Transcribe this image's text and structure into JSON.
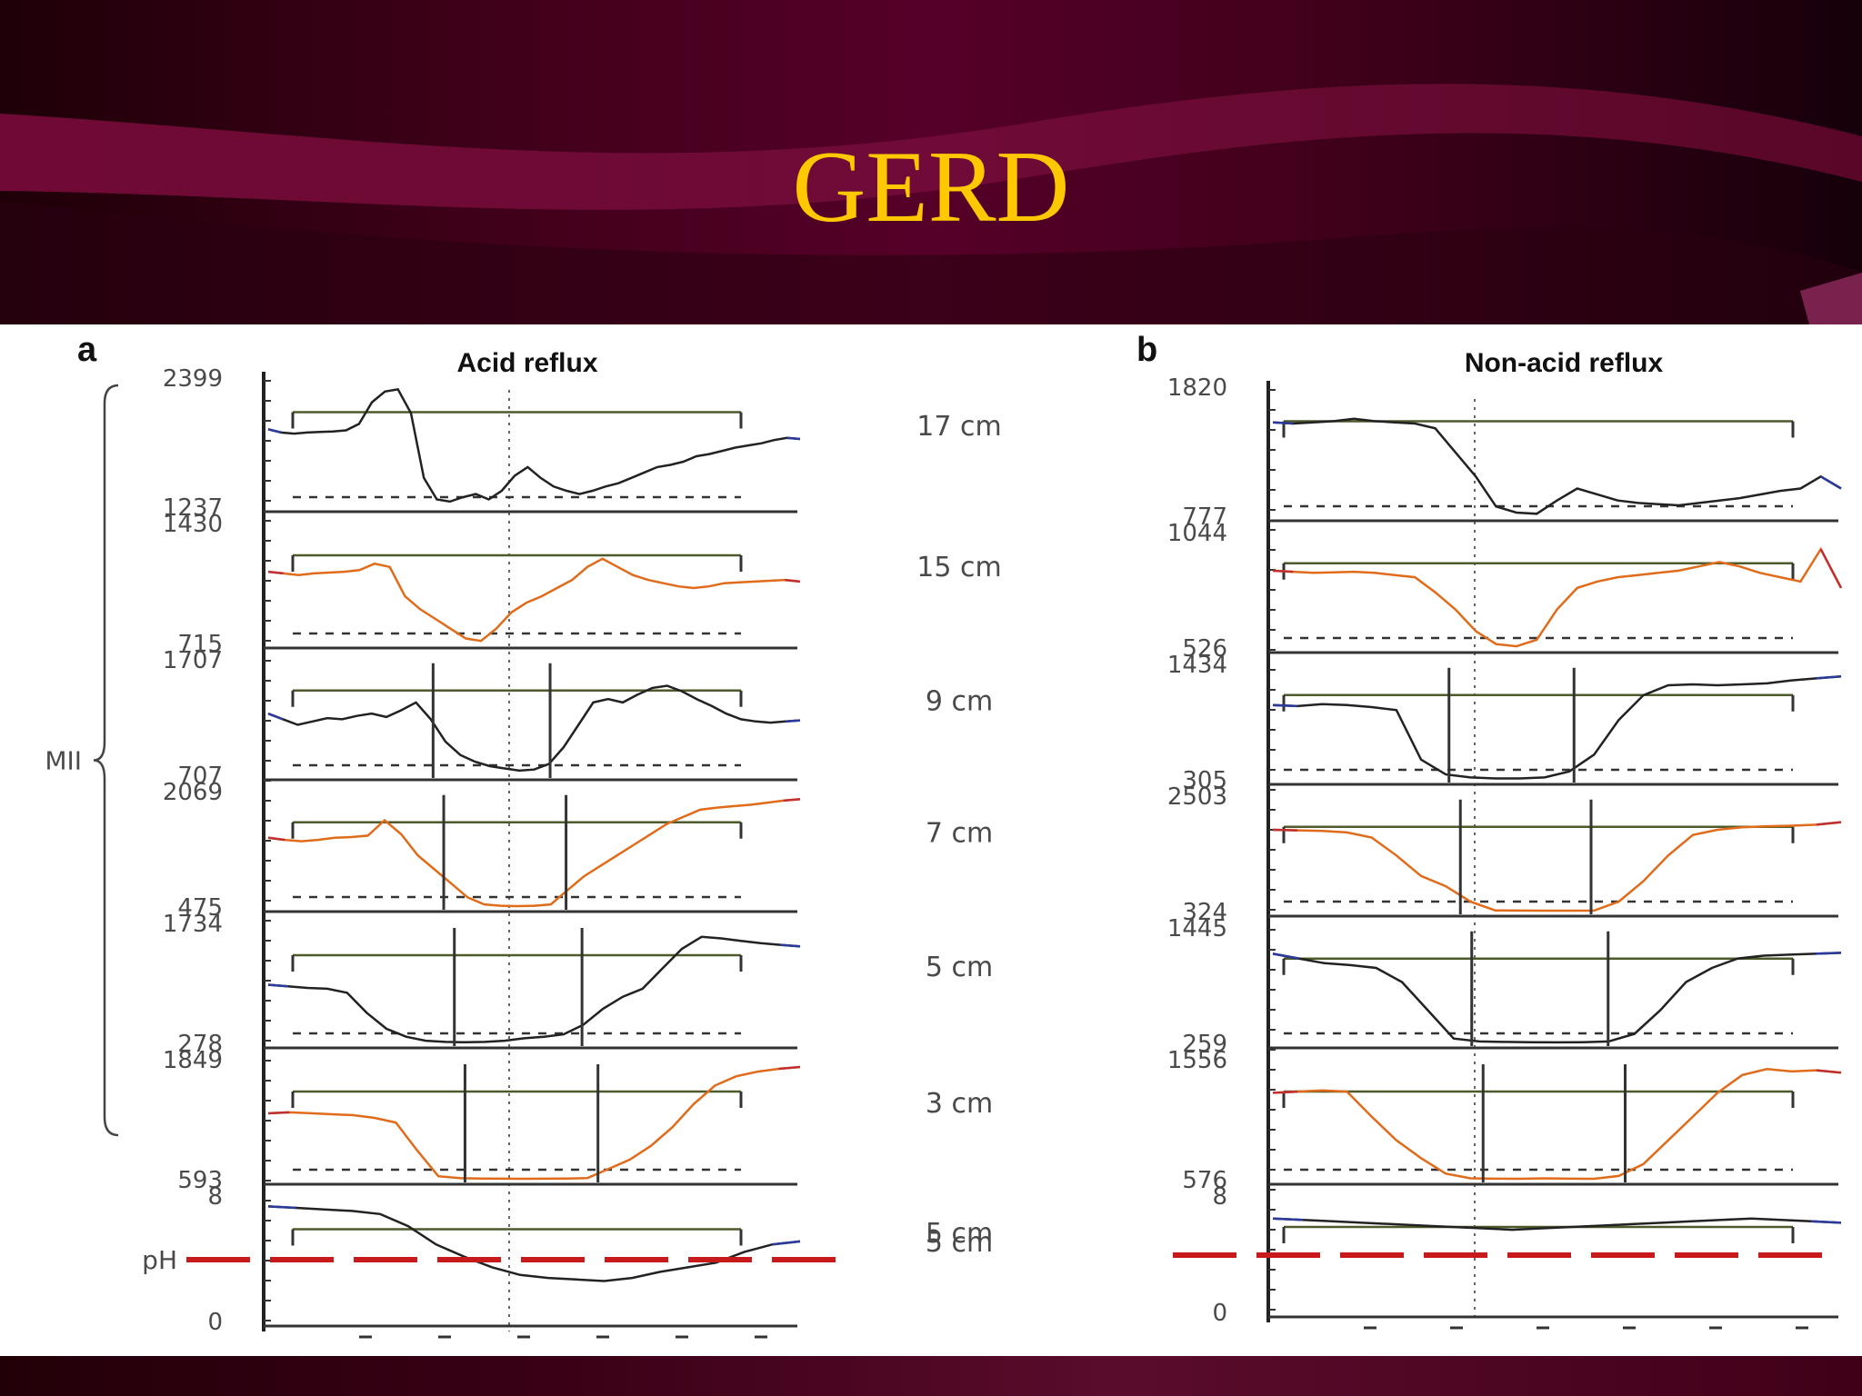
{
  "slide": {
    "title": "GERD",
    "colors": {
      "title": "#ffc800",
      "background": "#3a0016",
      "accent": "#7a0a3a"
    }
  },
  "chart_data": [
    {
      "type": "line",
      "panel_letter": "a",
      "title": "Acid reflux",
      "group_label": "MII",
      "ph_label": "pH",
      "channels": [
        {
          "distance": "17 cm",
          "y_top": "2399",
          "y_bottom": "1237",
          "ymin": 1237,
          "ymax": 2399,
          "color_line": "#222222",
          "color_edge": "#2a3a9a",
          "values": [
            1950,
            1920,
            1910,
            1920,
            1925,
            1930,
            1940,
            2000,
            2200,
            2300,
            2320,
            2100,
            1500,
            1300,
            1280,
            1320,
            1350,
            1300,
            1380,
            1520,
            1600,
            1500,
            1420,
            1380,
            1350,
            1380,
            1420,
            1450,
            1500,
            1550,
            1600,
            1620,
            1650,
            1700,
            1720,
            1750,
            1780,
            1800,
            1820,
            1850,
            1870,
            1860
          ]
        },
        {
          "distance": "15 cm",
          "y_top": "1430",
          "y_bottom": "715",
          "ymin": 715,
          "ymax": 1430,
          "color_line": "#e06b1a",
          "color_edge": "#c03030",
          "values": [
            1150,
            1140,
            1130,
            1140,
            1145,
            1150,
            1160,
            1200,
            1180,
            1000,
            920,
            860,
            800,
            740,
            725,
            800,
            900,
            960,
            1000,
            1050,
            1100,
            1180,
            1230,
            1180,
            1130,
            1100,
            1080,
            1060,
            1050,
            1060,
            1080,
            1085,
            1090,
            1095,
            1100,
            1090
          ]
        },
        {
          "distance": "9 cm",
          "y_top": "1707",
          "y_bottom": "707",
          "ymin": 707,
          "ymax": 1707,
          "color_line": "#222222",
          "color_edge": "#2a3a9a",
          "values": [
            1250,
            1200,
            1150,
            1180,
            1210,
            1200,
            1230,
            1250,
            1220,
            1280,
            1350,
            1200,
            1000,
            880,
            820,
            780,
            760,
            740,
            750,
            800,
            950,
            1150,
            1350,
            1380,
            1350,
            1420,
            1480,
            1500,
            1450,
            1380,
            1320,
            1250,
            1200,
            1180,
            1170,
            1180,
            1190
          ]
        },
        {
          "distance": "7 cm",
          "y_top": "2069",
          "y_bottom": "475",
          "ymin": 475,
          "ymax": 2069,
          "color_line": "#e06b1a",
          "color_edge": "#c03030",
          "values": [
            1450,
            1420,
            1400,
            1420,
            1450,
            1460,
            1480,
            1700,
            1500,
            1200,
            1000,
            800,
            600,
            500,
            480,
            475,
            480,
            500,
            700,
            900,
            1050,
            1200,
            1350,
            1500,
            1650,
            1750,
            1850,
            1880,
            1900,
            1920,
            1950,
            1980,
            2000
          ]
        },
        {
          "distance": "5 cm",
          "y_top": "1734",
          "y_bottom": "278",
          "ymin": 278,
          "ymax": 1734,
          "color_line": "#222222",
          "color_edge": "#2a3a9a",
          "values": [
            1000,
            980,
            960,
            950,
            900,
            650,
            450,
            350,
            300,
            285,
            280,
            285,
            300,
            330,
            350,
            380,
            500,
            700,
            850,
            950,
            1200,
            1450,
            1600,
            1580,
            1550,
            1520,
            1500,
            1480
          ]
        },
        {
          "distance": "3 cm",
          "y_top": "1849",
          "y_bottom": "593",
          "ymin": 593,
          "ymax": 1849,
          "color_line": "#e06b1a",
          "color_edge": "#c03030",
          "values": [
            1300,
            1310,
            1300,
            1290,
            1280,
            1250,
            1200,
            900,
            620,
            600,
            595,
            594,
            593,
            594,
            595,
            600,
            700,
            800,
            950,
            1150,
            1400,
            1600,
            1700,
            1750,
            1780,
            1800
          ]
        }
      ],
      "ph": {
        "distance": "5 cm",
        "y_top": "8",
        "y_bottom": "0",
        "ymin": 0,
        "ymax": 8,
        "threshold": 4,
        "values": [
          7.5,
          7.4,
          7.3,
          7.2,
          7.0,
          6.2,
          5.0,
          4.2,
          3.5,
          3.0,
          2.8,
          2.7,
          2.6,
          2.8,
          3.2,
          3.5,
          3.8,
          4.5,
          5.0,
          5.2
        ]
      }
    },
    {
      "type": "line",
      "panel_letter": "b",
      "title": "Non-acid reflux",
      "channels": [
        {
          "distance": "",
          "y_top": "1820",
          "y_bottom": "777",
          "ymin": 777,
          "ymax": 1820,
          "color_line": "#222222",
          "color_edge": "#2a3a9a",
          "values": [
            1550,
            1540,
            1550,
            1560,
            1580,
            1560,
            1550,
            1540,
            1500,
            1300,
            1100,
            850,
            800,
            790,
            900,
            1000,
            950,
            900,
            880,
            870,
            860,
            880,
            900,
            920,
            950,
            980,
            1000,
            1100,
            1000
          ]
        },
        {
          "distance": "",
          "y_top": "1044",
          "y_bottom": "526",
          "ymin": 526,
          "ymax": 1044,
          "color_line": "#e06b1a",
          "color_edge": "#c03030",
          "values": [
            880,
            875,
            870,
            872,
            875,
            870,
            860,
            850,
            780,
            700,
            600,
            540,
            530,
            560,
            700,
            800,
            830,
            850,
            860,
            870,
            880,
            900,
            920,
            900,
            870,
            850,
            830,
            980,
            800
          ]
        },
        {
          "distance": "",
          "y_top": "1434",
          "y_bottom": "305",
          "ymin": 305,
          "ymax": 1434,
          "color_line": "#222222",
          "color_edge": "#2a3a9a",
          "values": [
            1050,
            1040,
            1060,
            1050,
            1030,
            1000,
            500,
            350,
            320,
            310,
            310,
            320,
            380,
            550,
            900,
            1150,
            1250,
            1260,
            1250,
            1260,
            1270,
            1300,
            1320,
            1340
          ]
        },
        {
          "distance": "",
          "y_top": "2503",
          "y_bottom": "324",
          "ymin": 324,
          "ymax": 2503,
          "color_line": "#e06b1a",
          "color_edge": "#c03030",
          "values": [
            1900,
            1890,
            1880,
            1850,
            1750,
            1400,
            1000,
            800,
            500,
            330,
            325,
            324,
            324,
            325,
            500,
            900,
            1400,
            1800,
            1900,
            1950,
            1970,
            1980,
            2000,
            2050
          ]
        },
        {
          "distance": "",
          "y_top": "1445",
          "y_bottom": "259",
          "ymin": 259,
          "ymax": 1445,
          "color_line": "#222222",
          "color_edge": "#2a3a9a",
          "values": [
            1200,
            1150,
            1100,
            1080,
            1050,
            900,
            600,
            300,
            270,
            265,
            262,
            260,
            262,
            270,
            350,
            600,
            900,
            1050,
            1150,
            1180,
            1190,
            1200,
            1210
          ]
        },
        {
          "distance": "",
          "y_top": "1556",
          "y_bottom": "576",
          "ymin": 576,
          "ymax": 1556,
          "color_line": "#e06b1a",
          "color_edge": "#c03030",
          "values": [
            1300,
            1310,
            1320,
            1310,
            1100,
            900,
            750,
            620,
            580,
            577,
            576,
            580,
            577,
            576,
            600,
            700,
            900,
            1100,
            1300,
            1450,
            1500,
            1480,
            1490,
            1470
          ]
        }
      ],
      "ph": {
        "distance": "",
        "y_top": "8",
        "y_bottom": "0",
        "ymin": 0,
        "ymax": 8,
        "threshold": 4,
        "values": [
          6.6,
          6.5,
          6.4,
          6.3,
          6.2,
          6.1,
          6.0,
          5.9,
          5.8,
          5.9,
          6.0,
          6.1,
          6.2,
          6.3,
          6.4,
          6.5,
          6.6,
          6.5,
          6.4,
          6.3
        ]
      }
    }
  ]
}
